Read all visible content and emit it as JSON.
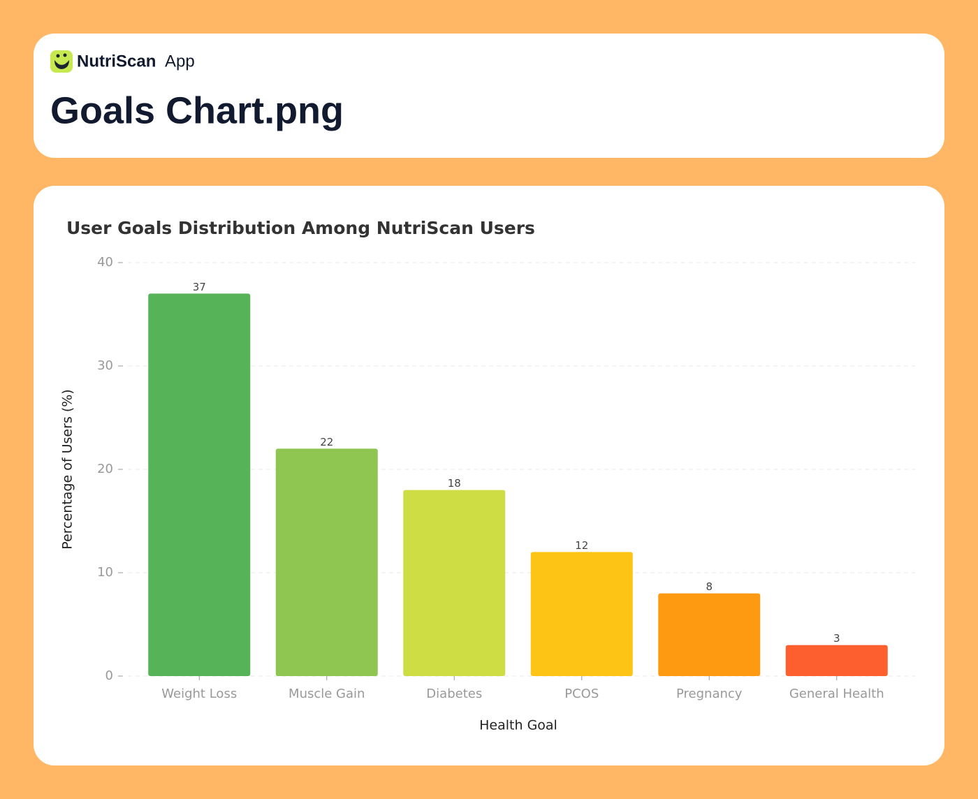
{
  "header": {
    "brand": "NutriScan",
    "brand_suffix": "App",
    "title": "Goals Chart.png"
  },
  "chart_data": {
    "type": "bar",
    "title": "User Goals Distribution Among NutriScan Users",
    "x_label": "Health Goal",
    "y_label": "Percentage of Users (%)",
    "categories": [
      "Weight Loss",
      "Muscle Gain",
      "Diabetes",
      "PCOS",
      "Pregnancy",
      "General Health"
    ],
    "values": [
      37,
      22,
      18,
      12,
      8,
      3
    ],
    "colors": [
      "#57b357",
      "#8fc551",
      "#cfdd45",
      "#fdc315",
      "#fe9a11",
      "#fe5f2e"
    ],
    "ylim": [
      0,
      40
    ],
    "yticks": [
      0,
      10,
      20,
      30,
      40
    ],
    "grid": true
  }
}
